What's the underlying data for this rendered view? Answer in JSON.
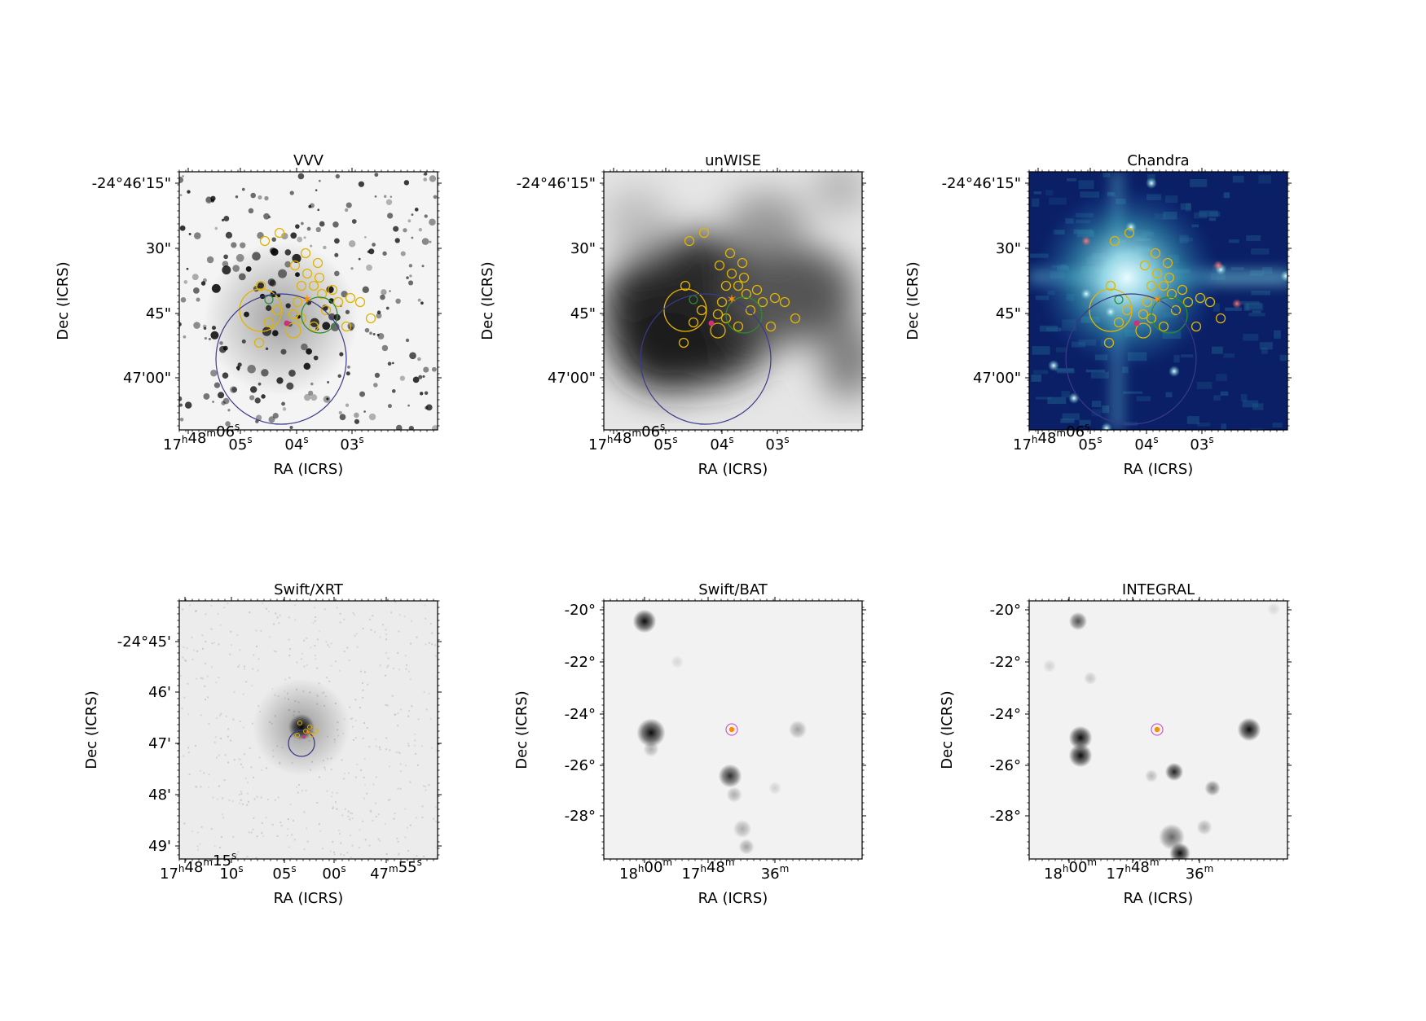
{
  "figure": {
    "panels": [
      {
        "id": "vvv",
        "title": "VVV",
        "xlabel": "RA (ICRS)",
        "ylabel": "Dec (ICRS)",
        "xticks": [
          {
            "main": "17",
            "sup1": "h",
            "mid": "48",
            "sup2": "m",
            "last": "06",
            "sup3": "s"
          },
          {
            "main": "05",
            "sup3": "s"
          },
          {
            "main": "04",
            "sup3": "s"
          },
          {
            "main": "03",
            "sup3": "s"
          }
        ],
        "yticks": [
          "-24°46'15\"",
          "30\"",
          "45\"",
          "47'00\""
        ],
        "image_style": "optical-grey"
      },
      {
        "id": "unwise",
        "title": "unWISE",
        "xlabel": "RA (ICRS)",
        "ylabel": "Dec (ICRS)",
        "xticks": [
          {
            "main": "17",
            "sup1": "h",
            "mid": "48",
            "sup2": "m",
            "last": "06",
            "sup3": "s"
          },
          {
            "main": "05",
            "sup3": "s"
          },
          {
            "main": "04",
            "sup3": "s"
          },
          {
            "main": "03",
            "sup3": "s"
          }
        ],
        "yticks": [
          "-24°46'15\"",
          "30\"",
          "45\"",
          "47'00\""
        ],
        "image_style": "infrared-grey"
      },
      {
        "id": "chandra",
        "title": "Chandra",
        "xlabel": "RA (ICRS)",
        "ylabel": "Dec (ICRS)",
        "xticks": [
          {
            "main": "17",
            "sup1": "h",
            "mid": "48",
            "sup2": "m",
            "last": "06",
            "sup3": "s"
          },
          {
            "main": "05",
            "sup3": "s"
          },
          {
            "main": "04",
            "sup3": "s"
          },
          {
            "main": "03",
            "sup3": "s"
          }
        ],
        "yticks": [
          "-24°46'15\"",
          "30\"",
          "45\"",
          "47'00\""
        ],
        "image_style": "xray-blue"
      },
      {
        "id": "swift-xrt",
        "title": "Swift/XRT",
        "xlabel": "RA (ICRS)",
        "ylabel": "Dec (ICRS)",
        "xticks": [
          {
            "main": "17",
            "sup1": "h",
            "mid": "48",
            "sup2": "m",
            "last": "15",
            "sup3": "s"
          },
          {
            "main": "10",
            "sup3": "s"
          },
          {
            "main": "05",
            "sup3": "s"
          },
          {
            "main": "00",
            "sup3": "s"
          },
          {
            "main": "47",
            "sup2": "m",
            "last": "55",
            "sup3": "s"
          }
        ],
        "yticks": [
          "-24°45'",
          "46'",
          "47'",
          "48'",
          "49'"
        ],
        "image_style": "xrt-grey"
      },
      {
        "id": "swift-bat",
        "title": "Swift/BAT",
        "xlabel": "RA (ICRS)",
        "ylabel": "Dec (ICRS)",
        "xticks": [
          {
            "main": "18",
            "sup1": "h",
            "mid": "00",
            "sup2": "m"
          },
          {
            "main": "17",
            "sup1": "h",
            "mid": "48",
            "sup2": "m"
          },
          {
            "main": "36",
            "sup2": "m"
          }
        ],
        "yticks": [
          "-20°",
          "-22°",
          "-24°",
          "-26°",
          "-28°"
        ],
        "image_style": "hard-xray-grey"
      },
      {
        "id": "integral",
        "title": "INTEGRAL",
        "xlabel": "RA (ICRS)",
        "ylabel": "Dec (ICRS)",
        "xticks": [
          {
            "main": "18",
            "sup1": "h",
            "mid": "00",
            "sup2": "m"
          },
          {
            "main": "17",
            "sup1": "h",
            "mid": "48",
            "sup2": "m"
          },
          {
            "main": "36",
            "sup2": "m"
          }
        ],
        "yticks": [
          "-20°",
          "-22°",
          "-24°",
          "-26°",
          "-28°"
        ],
        "image_style": "hard-xray-grey"
      }
    ],
    "colors": {
      "overlay_yellow": "#e0b400",
      "overlay_green": "#2e8b2e",
      "overlay_navy": "#3a3a8a",
      "overlay_magenta": "#d0307a",
      "overlay_orange": "#ff8c00",
      "overlay_pink_ring": "#cc66cc",
      "chandra_bg": "#0a1f66"
    }
  }
}
